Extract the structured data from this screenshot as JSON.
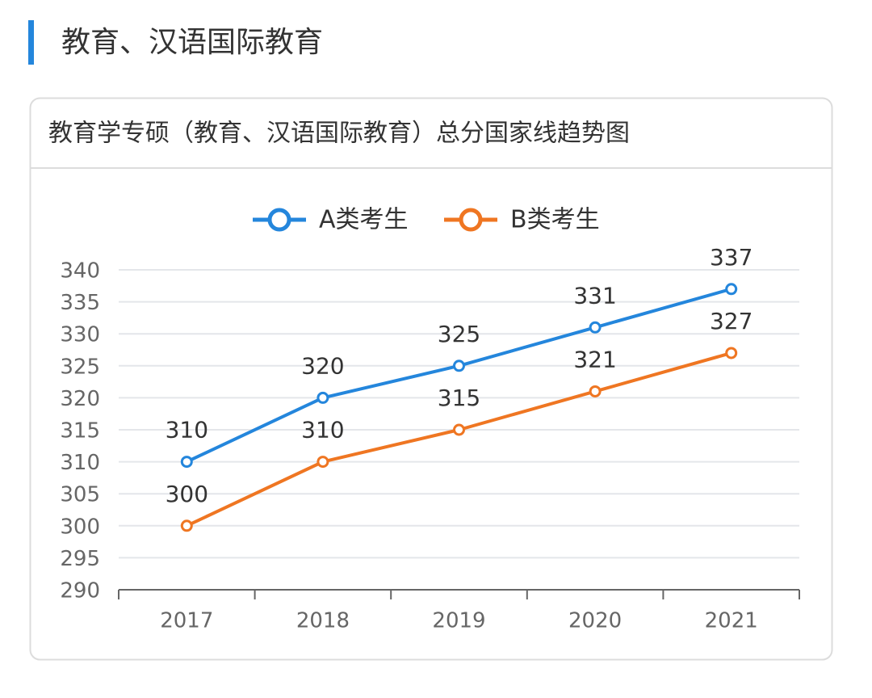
{
  "header": {
    "title": "教育、汉语国际教育"
  },
  "chart_data": {
    "type": "line",
    "title": "教育学专硕（教育、汉语国际教育）总分国家线趋势图",
    "categories": [
      "2017",
      "2018",
      "2019",
      "2020",
      "2021"
    ],
    "series": [
      {
        "name": "A类考生",
        "color": "#2486dc",
        "values": [
          310,
          320,
          325,
          331,
          337
        ]
      },
      {
        "name": "B类考生",
        "color": "#ef7622",
        "values": [
          300,
          310,
          315,
          321,
          327
        ]
      }
    ],
    "ylim": [
      290,
      340
    ],
    "yticks": [
      290,
      295,
      300,
      305,
      310,
      315,
      320,
      325,
      330,
      335,
      340
    ],
    "grid": true,
    "legend": "top",
    "data_labels": true
  }
}
